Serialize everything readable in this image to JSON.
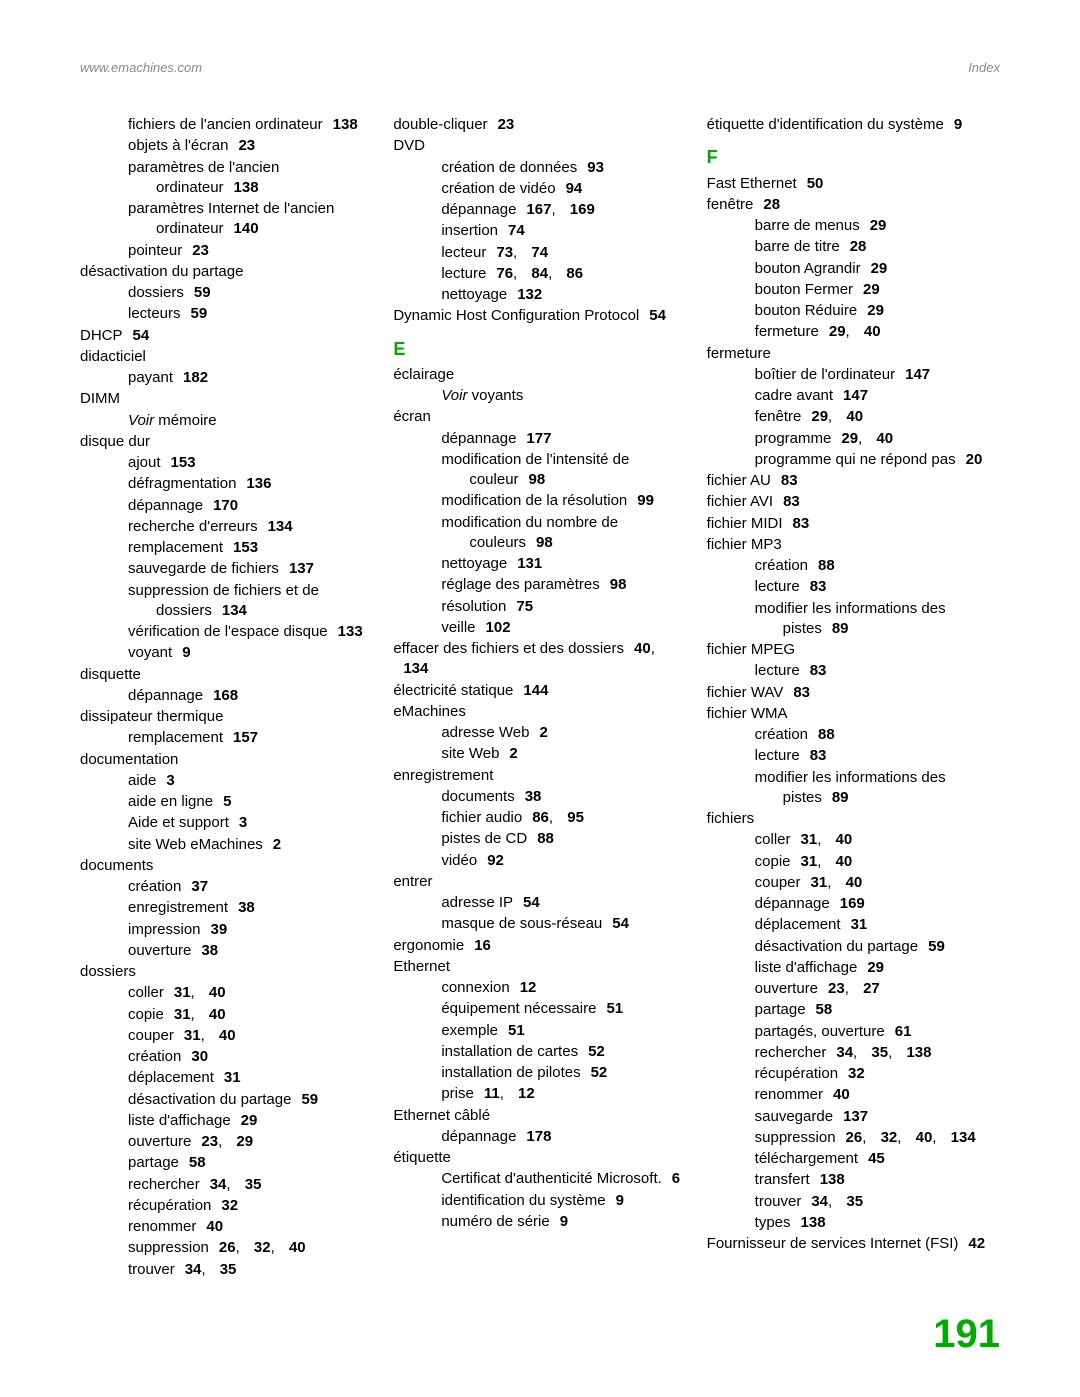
{
  "header": {
    "left": "www.emachines.com",
    "right": "Index"
  },
  "pageNumber": "191",
  "columns": [
    [
      {
        "l": 1,
        "t": "fichiers de l'ancien ordinateur",
        "p": "138"
      },
      {
        "l": 1,
        "t": "objets à l'écran",
        "p": "23"
      },
      {
        "l": 1,
        "t": "paramètres de l'ancien ordinateur",
        "p": "138"
      },
      {
        "l": 1,
        "t": "paramètres Internet de l'ancien ordinateur",
        "p": "140"
      },
      {
        "l": 1,
        "t": "pointeur",
        "p": "23"
      },
      {
        "l": 0,
        "t": "désactivation du partage"
      },
      {
        "l": 1,
        "t": "dossiers",
        "p": "59"
      },
      {
        "l": 1,
        "t": "lecteurs",
        "p": "59"
      },
      {
        "l": 0,
        "t": "DHCP",
        "p": "54"
      },
      {
        "l": 0,
        "t": "didacticiel"
      },
      {
        "l": 1,
        "t": "payant",
        "p": "182"
      },
      {
        "l": 0,
        "t": "DIMM"
      },
      {
        "l": 1,
        "t": "",
        "see": "Voir mémoire"
      },
      {
        "l": 0,
        "t": "disque dur"
      },
      {
        "l": 1,
        "t": "ajout",
        "p": "153"
      },
      {
        "l": 1,
        "t": "défragmentation",
        "p": "136"
      },
      {
        "l": 1,
        "t": "dépannage",
        "p": "170"
      },
      {
        "l": 1,
        "t": "recherche d'erreurs",
        "p": "134"
      },
      {
        "l": 1,
        "t": "remplacement",
        "p": "153"
      },
      {
        "l": 1,
        "t": "sauvegarde de fichiers",
        "p": "137"
      },
      {
        "l": 1,
        "t": "suppression de fichiers et de dossiers",
        "p": "134"
      },
      {
        "l": 1,
        "t": "vérification de l'espace disque",
        "p": "133"
      },
      {
        "l": 1,
        "t": "voyant",
        "p": "9"
      },
      {
        "l": 0,
        "t": "disquette"
      },
      {
        "l": 1,
        "t": "dépannage",
        "p": "168"
      },
      {
        "l": 0,
        "t": "dissipateur thermique"
      },
      {
        "l": 1,
        "t": "remplacement",
        "p": "157"
      },
      {
        "l": 0,
        "t": "documentation"
      },
      {
        "l": 1,
        "t": "aide",
        "p": "3"
      },
      {
        "l": 1,
        "t": "aide en ligne",
        "p": "5"
      },
      {
        "l": 1,
        "t": "Aide et support",
        "p": "3"
      },
      {
        "l": 1,
        "t": "site Web eMachines",
        "p": "2"
      },
      {
        "l": 0,
        "t": "documents"
      },
      {
        "l": 1,
        "t": "création",
        "p": "37"
      },
      {
        "l": 1,
        "t": "enregistrement",
        "p": "38"
      },
      {
        "l": 1,
        "t": "impression",
        "p": "39"
      },
      {
        "l": 1,
        "t": "ouverture",
        "p": "38"
      },
      {
        "l": 0,
        "t": "dossiers"
      },
      {
        "l": 1,
        "t": "coller",
        "p": "31, 40"
      },
      {
        "l": 1,
        "t": "copie",
        "p": "31, 40"
      },
      {
        "l": 1,
        "t": "couper",
        "p": "31, 40"
      },
      {
        "l": 1,
        "t": "création",
        "p": "30"
      },
      {
        "l": 1,
        "t": "déplacement",
        "p": "31"
      },
      {
        "l": 1,
        "t": "désactivation du partage",
        "p": "59"
      },
      {
        "l": 1,
        "t": "liste d'affichage",
        "p": "29"
      },
      {
        "l": 1,
        "t": "ouverture",
        "p": "23, 29"
      },
      {
        "l": 1,
        "t": "partage",
        "p": "58"
      },
      {
        "l": 1,
        "t": "rechercher",
        "p": "34, 35"
      },
      {
        "l": 1,
        "t": "récupération",
        "p": "32"
      },
      {
        "l": 1,
        "t": "renommer",
        "p": "40"
      },
      {
        "l": 1,
        "t": "suppression",
        "p": "26, 32, 40"
      },
      {
        "l": 1,
        "t": "trouver",
        "p": "34, 35"
      }
    ],
    [
      {
        "l": 0,
        "t": "double-cliquer",
        "p": "23"
      },
      {
        "l": 0,
        "t": "DVD"
      },
      {
        "l": 1,
        "t": "création de données",
        "p": "93"
      },
      {
        "l": 1,
        "t": "création de vidéo",
        "p": "94"
      },
      {
        "l": 1,
        "t": "dépannage",
        "p": "167, 169"
      },
      {
        "l": 1,
        "t": "insertion",
        "p": "74"
      },
      {
        "l": 1,
        "t": "lecteur",
        "p": "73, 74"
      },
      {
        "l": 1,
        "t": "lecture",
        "p": "76, 84, 86"
      },
      {
        "l": 1,
        "t": "nettoyage",
        "p": "132"
      },
      {
        "l": 0,
        "t": "Dynamic Host Configuration Protocol",
        "p": "54"
      },
      {
        "letter": "E"
      },
      {
        "l": 0,
        "t": "éclairage"
      },
      {
        "l": 1,
        "t": "",
        "see": "Voir voyants"
      },
      {
        "l": 0,
        "t": "écran"
      },
      {
        "l": 1,
        "t": "dépannage",
        "p": "177"
      },
      {
        "l": 1,
        "t": "modification de l'intensité de couleur",
        "p": "98"
      },
      {
        "l": 1,
        "t": "modification de la résolution",
        "p": "99"
      },
      {
        "l": 1,
        "t": "modification du nombre de couleurs",
        "p": "98"
      },
      {
        "l": 1,
        "t": "nettoyage",
        "p": "131"
      },
      {
        "l": 1,
        "t": "réglage des paramètres",
        "p": "98"
      },
      {
        "l": 1,
        "t": "résolution",
        "p": "75"
      },
      {
        "l": 1,
        "t": "veille",
        "p": "102"
      },
      {
        "l": 0,
        "t": "effacer des fichiers et des dossiers",
        "p": "40, 134"
      },
      {
        "l": 0,
        "t": "électricité statique",
        "p": "144"
      },
      {
        "l": 0,
        "t": "eMachines"
      },
      {
        "l": 1,
        "t": "adresse Web",
        "p": "2"
      },
      {
        "l": 1,
        "t": "site Web",
        "p": "2"
      },
      {
        "l": 0,
        "t": "enregistrement"
      },
      {
        "l": 1,
        "t": "documents",
        "p": "38"
      },
      {
        "l": 1,
        "t": "fichier audio",
        "p": "86, 95"
      },
      {
        "l": 1,
        "t": "pistes de CD",
        "p": "88"
      },
      {
        "l": 1,
        "t": "vidéo",
        "p": "92"
      },
      {
        "l": 0,
        "t": "entrer"
      },
      {
        "l": 1,
        "t": "adresse IP",
        "p": "54"
      },
      {
        "l": 1,
        "t": "masque de sous-réseau",
        "p": "54"
      },
      {
        "l": 0,
        "t": "ergonomie",
        "p": "16"
      },
      {
        "l": 0,
        "t": "Ethernet"
      },
      {
        "l": 1,
        "t": "connexion",
        "p": "12"
      },
      {
        "l": 1,
        "t": "équipement nécessaire",
        "p": "51"
      },
      {
        "l": 1,
        "t": "exemple",
        "p": "51"
      },
      {
        "l": 1,
        "t": "installation de cartes",
        "p": "52"
      },
      {
        "l": 1,
        "t": "installation de pilotes",
        "p": "52"
      },
      {
        "l": 1,
        "t": "prise",
        "p": "11, 12"
      },
      {
        "l": 0,
        "t": "Ethernet câblé"
      },
      {
        "l": 1,
        "t": "dépannage",
        "p": "178"
      },
      {
        "l": 0,
        "t": "étiquette"
      },
      {
        "l": 1,
        "t": "Certificat d'authenticité Microsoft.",
        "p": "6"
      },
      {
        "l": 1,
        "t": "identification du système",
        "p": "9"
      },
      {
        "l": 1,
        "t": "numéro de série",
        "p": "9"
      }
    ],
    [
      {
        "l": 0,
        "t": "étiquette d'identification du système",
        "p": "9"
      },
      {
        "letter": "F"
      },
      {
        "l": 0,
        "t": "Fast Ethernet",
        "p": "50"
      },
      {
        "l": 0,
        "t": "fenêtre",
        "p": "28"
      },
      {
        "l": 1,
        "t": "barre de menus",
        "p": "29"
      },
      {
        "l": 1,
        "t": "barre de titre",
        "p": "28"
      },
      {
        "l": 1,
        "t": "bouton Agrandir",
        "p": "29"
      },
      {
        "l": 1,
        "t": "bouton Fermer",
        "p": "29"
      },
      {
        "l": 1,
        "t": "bouton Réduire",
        "p": "29"
      },
      {
        "l": 1,
        "t": "fermeture",
        "p": "29, 40"
      },
      {
        "l": 0,
        "t": "fermeture"
      },
      {
        "l": 1,
        "t": "boîtier de l'ordinateur",
        "p": "147"
      },
      {
        "l": 1,
        "t": "cadre avant",
        "p": "147"
      },
      {
        "l": 1,
        "t": "fenêtre",
        "p": "29, 40"
      },
      {
        "l": 1,
        "t": "programme",
        "p": "29, 40"
      },
      {
        "l": 1,
        "t": "programme qui ne répond pas",
        "p": "20"
      },
      {
        "l": 0,
        "t": "fichier AU",
        "p": "83"
      },
      {
        "l": 0,
        "t": "fichier AVI",
        "p": "83"
      },
      {
        "l": 0,
        "t": "fichier MIDI",
        "p": "83"
      },
      {
        "l": 0,
        "t": "fichier MP3"
      },
      {
        "l": 1,
        "t": "création",
        "p": "88"
      },
      {
        "l": 1,
        "t": "lecture",
        "p": "83"
      },
      {
        "l": 1,
        "t": "modifier les informations des pistes",
        "p": "89"
      },
      {
        "l": 0,
        "t": "fichier MPEG"
      },
      {
        "l": 1,
        "t": "lecture",
        "p": "83"
      },
      {
        "l": 0,
        "t": "fichier WAV",
        "p": "83"
      },
      {
        "l": 0,
        "t": "fichier WMA"
      },
      {
        "l": 1,
        "t": "création",
        "p": "88"
      },
      {
        "l": 1,
        "t": "lecture",
        "p": "83"
      },
      {
        "l": 1,
        "t": "modifier les informations des pistes",
        "p": "89"
      },
      {
        "l": 0,
        "t": "fichiers"
      },
      {
        "l": 1,
        "t": "coller",
        "p": "31, 40"
      },
      {
        "l": 1,
        "t": "copie",
        "p": "31, 40"
      },
      {
        "l": 1,
        "t": "couper",
        "p": "31, 40"
      },
      {
        "l": 1,
        "t": "dépannage",
        "p": "169"
      },
      {
        "l": 1,
        "t": "déplacement",
        "p": "31"
      },
      {
        "l": 1,
        "t": "désactivation du partage",
        "p": "59"
      },
      {
        "l": 1,
        "t": "liste d'affichage",
        "p": "29"
      },
      {
        "l": 1,
        "t": "ouverture",
        "p": "23, 27"
      },
      {
        "l": 1,
        "t": "partage",
        "p": "58"
      },
      {
        "l": 1,
        "t": "partagés, ouverture",
        "p": "61"
      },
      {
        "l": 1,
        "t": "rechercher",
        "p": "34, 35, 138"
      },
      {
        "l": 1,
        "t": "récupération",
        "p": "32"
      },
      {
        "l": 1,
        "t": "renommer",
        "p": "40"
      },
      {
        "l": 1,
        "t": "sauvegarde",
        "p": "137"
      },
      {
        "l": 1,
        "t": "suppression",
        "p": "26, 32, 40, 134"
      },
      {
        "l": 1,
        "t": "téléchargement",
        "p": "45"
      },
      {
        "l": 1,
        "t": "transfert",
        "p": "138"
      },
      {
        "l": 1,
        "t": "trouver",
        "p": "34, 35"
      },
      {
        "l": 1,
        "t": "types",
        "p": "138"
      },
      {
        "l": 0,
        "t": "Fournisseur de services Internet (FSI)",
        "p": "42"
      }
    ]
  ]
}
